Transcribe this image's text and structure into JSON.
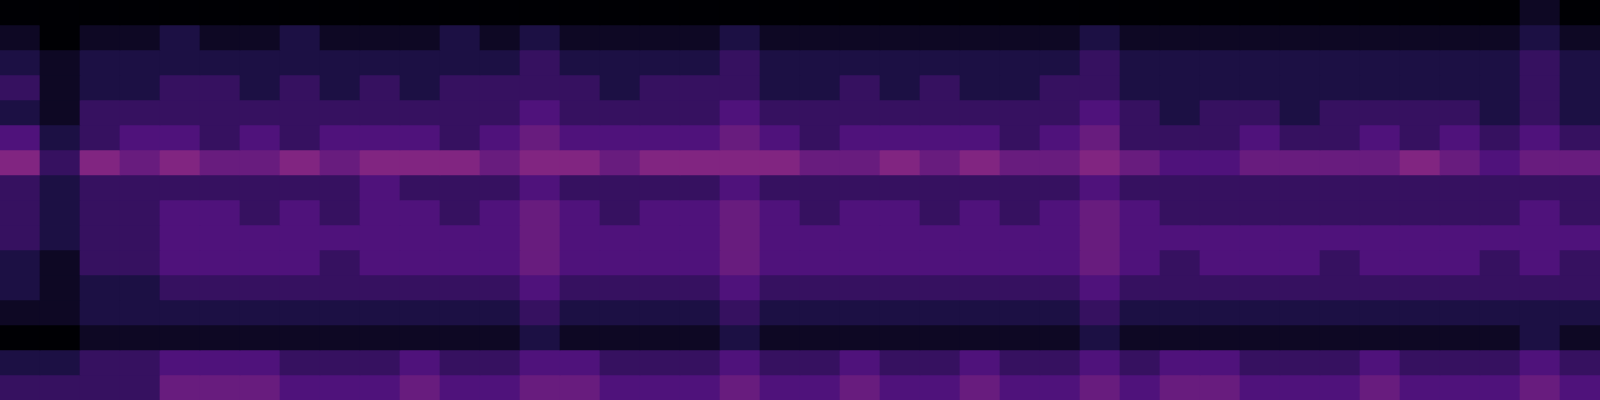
{
  "chart_data": {
    "type": "heatmap",
    "tick_labels": false,
    "grid": false,
    "zlim": [
      0,
      16
    ],
    "cells": [
      [
        0,
        0,
        0,
        0,
        0,
        0,
        0,
        0,
        0,
        0,
        0,
        0,
        0,
        0,
        0,
        0,
        0,
        0,
        0,
        0,
        0,
        0,
        0,
        0,
        0,
        0,
        0,
        0,
        0,
        0,
        0,
        0,
        0,
        0,
        0,
        0,
        0,
        0,
        1,
        0
      ],
      [
        1,
        0,
        1,
        1,
        2,
        1,
        1,
        2,
        1,
        1,
        1,
        2,
        1,
        2,
        1,
        1,
        1,
        1,
        2,
        1,
        1,
        1,
        1,
        1,
        1,
        1,
        1,
        2,
        1,
        1,
        1,
        1,
        1,
        1,
        1,
        1,
        1,
        1,
        2,
        1
      ],
      [
        2,
        1,
        2,
        2,
        2,
        2,
        2,
        2,
        2,
        2,
        2,
        2,
        2,
        3,
        2,
        2,
        2,
        2,
        3,
        2,
        2,
        2,
        2,
        2,
        2,
        2,
        2,
        3,
        2,
        2,
        2,
        2,
        2,
        2,
        2,
        2,
        2,
        2,
        3,
        2
      ],
      [
        3,
        1,
        2,
        2,
        3,
        3,
        2,
        3,
        2,
        3,
        2,
        3,
        3,
        3,
        3,
        2,
        3,
        3,
        3,
        2,
        2,
        3,
        2,
        3,
        2,
        2,
        3,
        3,
        2,
        2,
        2,
        2,
        2,
        2,
        2,
        2,
        2,
        2,
        3,
        2
      ],
      [
        2,
        1,
        3,
        3,
        3,
        3,
        3,
        3,
        3,
        3,
        3,
        3,
        3,
        4,
        3,
        3,
        3,
        3,
        4,
        3,
        3,
        3,
        3,
        3,
        3,
        3,
        3,
        4,
        3,
        2,
        3,
        3,
        2,
        3,
        3,
        3,
        3,
        2,
        3,
        2
      ],
      [
        4,
        2,
        3,
        4,
        4,
        3,
        4,
        3,
        4,
        4,
        4,
        3,
        4,
        5,
        4,
        4,
        4,
        4,
        5,
        4,
        3,
        4,
        4,
        4,
        4,
        3,
        4,
        5,
        3,
        3,
        3,
        4,
        3,
        3,
        4,
        3,
        4,
        3,
        4,
        3
      ],
      [
        6,
        3,
        6,
        5,
        6,
        5,
        5,
        6,
        5,
        6,
        6,
        6,
        5,
        6,
        6,
        5,
        6,
        6,
        6,
        6,
        5,
        5,
        6,
        5,
        6,
        5,
        5,
        6,
        5,
        4,
        4,
        5,
        5,
        5,
        5,
        6,
        5,
        4,
        5,
        5
      ],
      [
        3,
        2,
        3,
        3,
        3,
        3,
        3,
        3,
        3,
        4,
        3,
        3,
        3,
        4,
        3,
        3,
        3,
        3,
        4,
        3,
        3,
        3,
        3,
        3,
        3,
        3,
        3,
        4,
        3,
        3,
        3,
        3,
        3,
        3,
        3,
        3,
        3,
        3,
        3,
        3
      ],
      [
        3,
        2,
        3,
        3,
        4,
        4,
        3,
        4,
        3,
        4,
        4,
        3,
        4,
        5,
        4,
        3,
        4,
        4,
        5,
        4,
        3,
        4,
        4,
        3,
        4,
        3,
        4,
        5,
        4,
        3,
        3,
        3,
        3,
        3,
        3,
        3,
        3,
        3,
        4,
        3
      ],
      [
        3,
        2,
        3,
        3,
        4,
        4,
        4,
        4,
        4,
        4,
        4,
        4,
        4,
        5,
        4,
        4,
        4,
        4,
        5,
        4,
        4,
        4,
        4,
        4,
        4,
        4,
        4,
        5,
        4,
        4,
        4,
        4,
        4,
        4,
        4,
        4,
        4,
        4,
        4,
        4
      ],
      [
        2,
        1,
        3,
        3,
        4,
        4,
        4,
        4,
        3,
        4,
        4,
        4,
        4,
        5,
        4,
        4,
        4,
        4,
        5,
        4,
        4,
        4,
        4,
        4,
        4,
        4,
        4,
        5,
        4,
        3,
        4,
        4,
        4,
        3,
        4,
        4,
        4,
        3,
        4,
        3
      ],
      [
        2,
        1,
        2,
        2,
        3,
        3,
        3,
        3,
        3,
        3,
        3,
        3,
        3,
        4,
        3,
        3,
        3,
        3,
        4,
        3,
        3,
        3,
        3,
        3,
        3,
        3,
        3,
        4,
        3,
        3,
        3,
        3,
        3,
        3,
        3,
        3,
        3,
        3,
        3,
        3
      ],
      [
        1,
        1,
        2,
        2,
        2,
        2,
        2,
        2,
        2,
        2,
        2,
        2,
        2,
        3,
        2,
        2,
        2,
        2,
        3,
        2,
        2,
        2,
        2,
        2,
        2,
        2,
        2,
        3,
        2,
        2,
        2,
        2,
        2,
        2,
        2,
        2,
        2,
        2,
        2,
        2
      ],
      [
        0,
        0,
        1,
        1,
        1,
        1,
        1,
        1,
        1,
        1,
        1,
        1,
        1,
        2,
        1,
        1,
        1,
        1,
        2,
        1,
        1,
        1,
        1,
        1,
        1,
        1,
        1,
        2,
        1,
        1,
        1,
        1,
        1,
        1,
        1,
        1,
        1,
        1,
        2,
        1
      ],
      [
        2,
        2,
        3,
        3,
        4,
        4,
        4,
        3,
        3,
        3,
        4,
        3,
        3,
        4,
        4,
        3,
        3,
        3,
        4,
        3,
        3,
        4,
        3,
        3,
        4,
        3,
        3,
        4,
        3,
        4,
        4,
        3,
        3,
        3,
        4,
        3,
        3,
        3,
        4,
        3
      ],
      [
        3,
        3,
        3,
        3,
        5,
        5,
        5,
        4,
        4,
        4,
        5,
        4,
        4,
        5,
        5,
        4,
        4,
        4,
        5,
        4,
        4,
        5,
        4,
        4,
        5,
        4,
        4,
        5,
        4,
        5,
        5,
        4,
        4,
        4,
        5,
        4,
        4,
        4,
        5,
        4
      ]
    ]
  }
}
